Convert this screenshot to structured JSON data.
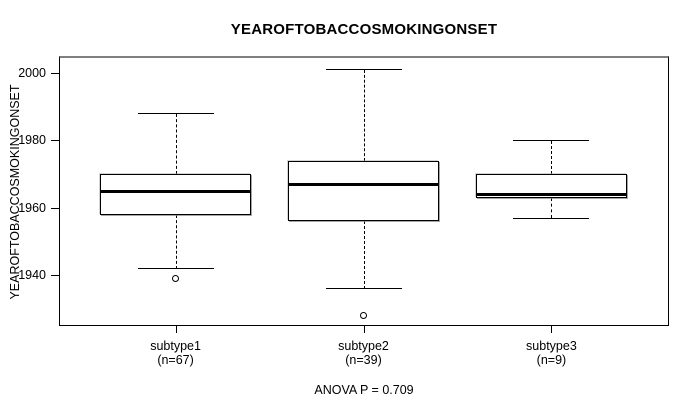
{
  "chart_data": {
    "type": "boxplot",
    "title": "YEAROFTOBACCOSMOKINGONSET",
    "ylabel": "YEAROFTOBACCOSMOKINGONSET",
    "xlabel": "",
    "footer_annotation": "ANOVA P = 0.709",
    "ylim": [
      1925,
      2004.5
    ],
    "yticks": [
      1940,
      1960,
      1980,
      2000
    ],
    "grid": false,
    "legend": "none",
    "categories": [
      "subtype1",
      "subtype2",
      "subtype3"
    ],
    "category_sublabels": [
      "(n=67)",
      "(n=39)",
      "(n=9)"
    ],
    "category_counts": [
      67,
      39,
      9
    ],
    "series": [
      {
        "name": "subtype1",
        "n": 67,
        "whisker_low": 1942,
        "q1": 1958,
        "median": 1965,
        "q3": 1970,
        "whisker_high": 1988,
        "outliers": [
          1939
        ]
      },
      {
        "name": "subtype2",
        "n": 39,
        "whisker_low": 1936,
        "q1": 1956,
        "median": 1967,
        "q3": 1974,
        "whisker_high": 2001,
        "outliers": [
          1928
        ]
      },
      {
        "name": "subtype3",
        "n": 9,
        "whisker_low": 1957,
        "q1": 1963,
        "median": 1964,
        "q3": 1970,
        "whisker_high": 1980,
        "outliers": []
      }
    ],
    "colors": {
      "line": "#000000",
      "box_fill": "#ffffff",
      "frame_top": "#7f7f7f",
      "background": "#ffffff"
    }
  }
}
